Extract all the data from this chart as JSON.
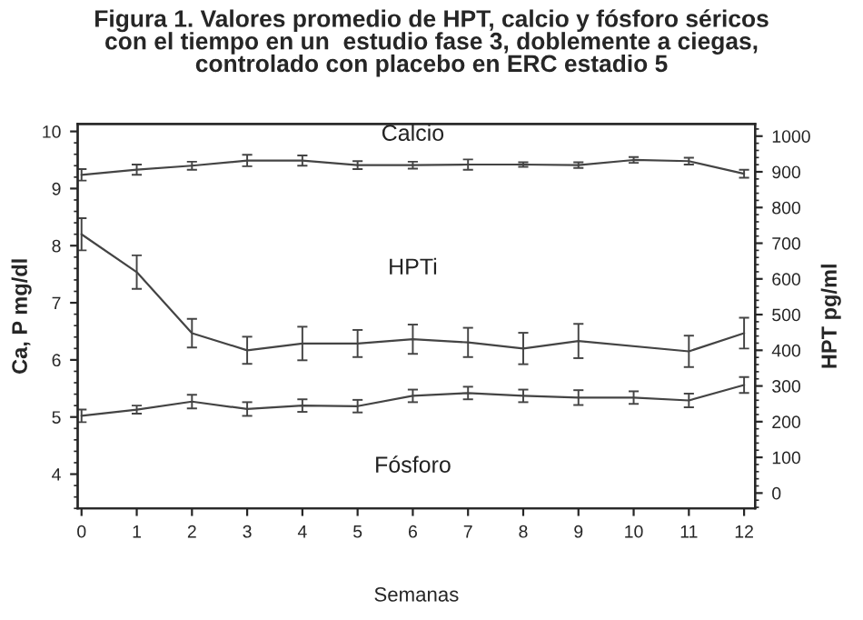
{
  "chart_data": {
    "type": "line",
    "title": "Figura 1. Valores promedio de HPT, calcio y fósforo séricos\ncon el tiempo en un  estudio fase 3, doblemente a ciegas,\ncontrolado con placebo en ERC estadio 5",
    "xlabel": "Semanas",
    "ylabel": "Ca, P mg/dl",
    "y2label": "HPT pg/ml",
    "x": [
      0,
      1,
      2,
      3,
      4,
      5,
      6,
      7,
      8,
      9,
      10,
      11,
      12
    ],
    "series": [
      {
        "name": "Calcio",
        "color": "#444444",
        "values": [
          9.24,
          9.33,
          9.4,
          9.49,
          9.49,
          9.41,
          9.41,
          9.42,
          9.42,
          9.41,
          9.5,
          9.48,
          9.26
        ],
        "errors": [
          0.1,
          0.09,
          0.07,
          0.1,
          0.09,
          0.07,
          0.06,
          0.09,
          0.04,
          0.05,
          0.05,
          0.06,
          0.07
        ]
      },
      {
        "name": "HPTi",
        "color": "#444444",
        "axis": "y2",
        "x": [
          0,
          1,
          2,
          3,
          4,
          5,
          6,
          7,
          8,
          9,
          11,
          12
        ],
        "values": [
          725,
          619,
          448,
          400,
          419,
          419,
          431,
          422,
          405,
          426,
          397,
          448
        ],
        "errors": [
          45,
          47,
          40,
          38,
          47,
          38,
          41,
          41,
          44,
          48,
          44,
          43
        ]
      },
      {
        "name": "Fósforo",
        "color": "#444444",
        "values": [
          5.02,
          5.13,
          5.27,
          5.14,
          5.2,
          5.19,
          5.37,
          5.42,
          5.37,
          5.34,
          5.34,
          5.29,
          5.56
        ],
        "errors": [
          0.11,
          0.07,
          0.12,
          0.12,
          0.11,
          0.11,
          0.11,
          0.11,
          0.11,
          0.13,
          0.11,
          0.12,
          0.14
        ]
      }
    ],
    "xlim": [
      -0.07,
      12.2
    ],
    "xticks": [
      0,
      1,
      2,
      3,
      4,
      5,
      6,
      7,
      8,
      9,
      10,
      11,
      12
    ],
    "ylim": [
      3.4,
      10.13
    ],
    "yticks": [
      4,
      5,
      6,
      7,
      8,
      9,
      10
    ],
    "y2lim": [
      -43,
      1034
    ],
    "y2ticks": [
      0,
      100,
      200,
      300,
      400,
      500,
      600,
      700,
      800,
      900,
      1000
    ],
    "grid": false,
    "legend": false,
    "marker": "none",
    "line_style": "solid"
  }
}
